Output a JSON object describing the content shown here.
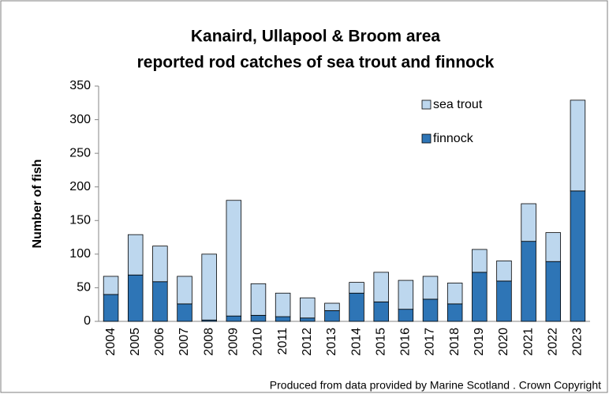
{
  "chart_data": {
    "type": "stacked_bar",
    "title": "Kanaird, Ullapool & Broom area",
    "subtitle": "reported rod catches of sea trout and finnock",
    "y_label": "Number of fish",
    "footer": "Produced from data provided by Marine Scotland . Crown Copyright",
    "categories": [
      "2004",
      "2005",
      "2006",
      "2007",
      "2008",
      "2009",
      "2010",
      "2011",
      "2012",
      "2013",
      "2014",
      "2015",
      "2016",
      "2017",
      "2018",
      "2019",
      "2020",
      "2021",
      "2022",
      "2023"
    ],
    "series": [
      {
        "name": "finnock",
        "color": "#2e75b6",
        "values": [
          40,
          69,
          59,
          26,
          2,
          8,
          9,
          7,
          5,
          16,
          42,
          29,
          18,
          33,
          26,
          73,
          60,
          119,
          89,
          194
        ]
      },
      {
        "name": "sea trout",
        "color": "#bdd7ee",
        "values": [
          27,
          60,
          53,
          41,
          98,
          172,
          47,
          35,
          30,
          11,
          16,
          44,
          43,
          34,
          31,
          34,
          30,
          56,
          43,
          135
        ]
      }
    ],
    "ylim": [
      0,
      350
    ],
    "yticks": [
      0,
      50,
      100,
      150,
      200,
      250,
      300,
      350
    ],
    "legend": "upper right",
    "grid": false
  }
}
